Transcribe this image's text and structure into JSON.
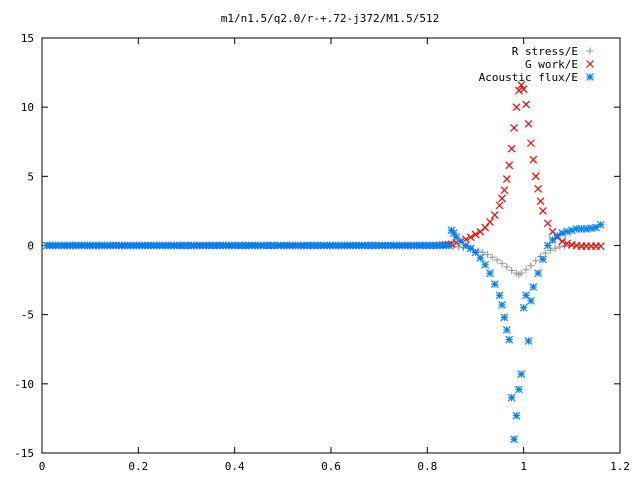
{
  "chart_data": {
    "type": "scatter",
    "title": "m1/n1.5/q2.0/r-+.72-j372/M1.5/512",
    "xlabel": "",
    "ylabel": "",
    "xlim": [
      0,
      1.2
    ],
    "ylim": [
      -15,
      15
    ],
    "x_ticks": [
      "0",
      "0.2",
      "0.4",
      "0.6",
      "0.8",
      "1",
      "1.2"
    ],
    "y_ticks": [
      "15",
      "10",
      "5",
      "0",
      "-5",
      "-10",
      "-15"
    ],
    "grid": false,
    "legend_position": "top-right",
    "series": [
      {
        "name": "R stress/E",
        "marker": "plus",
        "color": "#a0a0a0",
        "x": [
          0.01,
          0.04,
          0.07,
          0.1,
          0.13,
          0.16,
          0.19,
          0.22,
          0.25,
          0.28,
          0.31,
          0.34,
          0.37,
          0.4,
          0.43,
          0.46,
          0.49,
          0.52,
          0.55,
          0.58,
          0.61,
          0.64,
          0.67,
          0.7,
          0.73,
          0.76,
          0.79,
          0.82,
          0.845,
          0.855,
          0.865,
          0.875,
          0.885,
          0.895,
          0.905,
          0.915,
          0.925,
          0.935,
          0.945,
          0.955,
          0.965,
          0.975,
          0.985,
          0.99,
          0.995,
          1.005,
          1.015,
          1.025,
          1.035,
          1.045,
          1.055,
          1.065,
          1.075,
          1.085,
          1.095,
          1.105,
          1.115,
          1.125,
          1.135,
          1.145,
          1.155
        ],
        "y": [
          0,
          0,
          0,
          0,
          0,
          0,
          0,
          0,
          0,
          0,
          0,
          0,
          0,
          0,
          0,
          0,
          0,
          0,
          0,
          0,
          0,
          0,
          0,
          0,
          0,
          0,
          0,
          0,
          0,
          -0.05,
          -0.1,
          -0.15,
          -0.2,
          -0.3,
          -0.4,
          -0.5,
          -0.65,
          -0.85,
          -1.05,
          -1.3,
          -1.55,
          -1.8,
          -2.0,
          -2.1,
          -2.0,
          -1.75,
          -1.45,
          -1.1,
          -0.8,
          -0.55,
          -0.35,
          -0.2,
          -0.1,
          -0.05,
          0,
          0,
          0,
          0,
          0,
          0,
          0
        ]
      },
      {
        "name": "G work/E",
        "marker": "cross",
        "color": "#ff0000",
        "x": [
          0.01,
          0.04,
          0.07,
          0.1,
          0.13,
          0.16,
          0.19,
          0.22,
          0.25,
          0.28,
          0.31,
          0.34,
          0.37,
          0.4,
          0.43,
          0.46,
          0.49,
          0.52,
          0.55,
          0.58,
          0.61,
          0.64,
          0.67,
          0.7,
          0.73,
          0.76,
          0.79,
          0.82,
          0.85,
          0.86,
          0.87,
          0.88,
          0.89,
          0.9,
          0.91,
          0.92,
          0.93,
          0.94,
          0.95,
          0.955,
          0.96,
          0.965,
          0.97,
          0.975,
          0.98,
          0.985,
          0.99,
          0.995,
          1.0,
          1.005,
          1.01,
          1.015,
          1.02,
          1.025,
          1.03,
          1.035,
          1.04,
          1.05,
          1.06,
          1.07,
          1.08,
          1.09,
          1.1,
          1.11,
          1.12,
          1.13,
          1.14,
          1.15,
          1.16
        ],
        "y": [
          0,
          0,
          0,
          0,
          0,
          0,
          0,
          0,
          0,
          0,
          0,
          0,
          0,
          0,
          0,
          0,
          0,
          0,
          0,
          0,
          0,
          0,
          0,
          0,
          0,
          0,
          0,
          0,
          0.1,
          0.2,
          0.3,
          0.45,
          0.6,
          0.8,
          1.0,
          1.3,
          1.7,
          2.2,
          2.9,
          3.4,
          4.0,
          4.8,
          5.8,
          7.0,
          8.5,
          10.0,
          11.2,
          11.6,
          11.3,
          10.2,
          8.8,
          7.4,
          6.2,
          5.0,
          4.1,
          3.2,
          2.5,
          1.6,
          1.0,
          0.6,
          0.3,
          0.15,
          0.05,
          0,
          -0.05,
          -0.05,
          -0.05,
          -0.05,
          -0.05
        ]
      },
      {
        "name": "Acoustic flux/E",
        "marker": "star",
        "color": "#0080ff",
        "x": [
          0.01,
          0.04,
          0.07,
          0.1,
          0.13,
          0.16,
          0.19,
          0.22,
          0.25,
          0.28,
          0.31,
          0.34,
          0.37,
          0.4,
          0.43,
          0.46,
          0.49,
          0.52,
          0.55,
          0.58,
          0.61,
          0.64,
          0.67,
          0.7,
          0.73,
          0.76,
          0.79,
          0.82,
          0.845,
          0.85,
          0.855,
          0.86,
          0.87,
          0.88,
          0.89,
          0.9,
          0.91,
          0.92,
          0.93,
          0.94,
          0.95,
          0.955,
          0.96,
          0.965,
          0.97,
          0.975,
          0.98,
          0.985,
          0.99,
          0.995,
          1.0,
          1.005,
          1.01,
          1.015,
          1.02,
          1.03,
          1.04,
          1.05,
          1.06,
          1.07,
          1.08,
          1.09,
          1.1,
          1.11,
          1.12,
          1.13,
          1.14,
          1.15,
          1.16
        ],
        "y": [
          0,
          0,
          0,
          0,
          0,
          0,
          0,
          0,
          0,
          0,
          0,
          0,
          0,
          0,
          0,
          0,
          0,
          0,
          0,
          0,
          0,
          0,
          0,
          0,
          0,
          0,
          0,
          0,
          0,
          1.1,
          0.9,
          0.6,
          0.3,
          0.0,
          -0.2,
          -0.5,
          -0.9,
          -1.4,
          -2.0,
          -2.8,
          -3.6,
          -4.3,
          -5.2,
          -6.1,
          -6.8,
          -11.0,
          -14.0,
          -12.3,
          -10.4,
          -9.3,
          -4.5,
          -3.6,
          -6.9,
          -4.0,
          -3.0,
          -2.0,
          -1.0,
          0.0,
          0.4,
          0.7,
          0.9,
          1.0,
          1.1,
          1.2,
          1.2,
          1.2,
          1.25,
          1.3,
          1.5
        ]
      }
    ]
  }
}
